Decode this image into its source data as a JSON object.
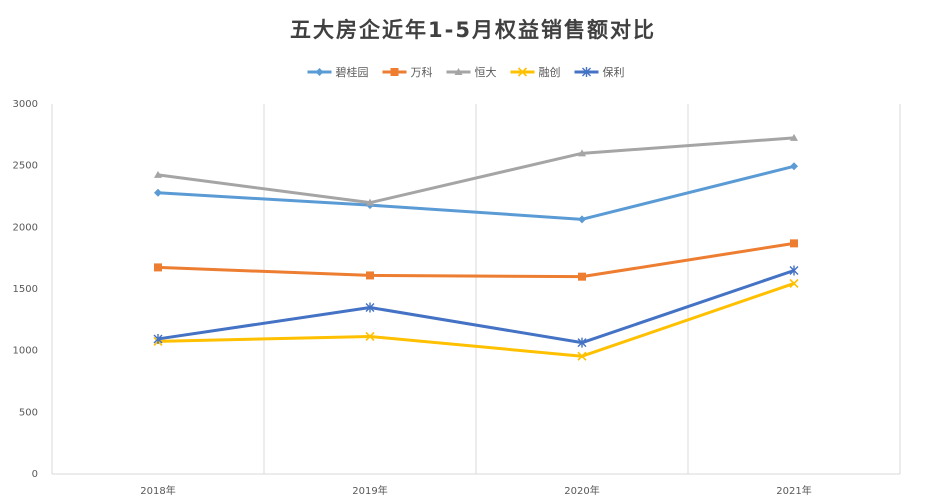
{
  "chart_data": {
    "type": "line",
    "title": "五大房企近年1-5月权益销售额对比",
    "categories": [
      "2018年",
      "2019年",
      "2020年",
      "2021年"
    ],
    "ylim": [
      0,
      3000
    ],
    "yticks": [
      0,
      500,
      1000,
      1500,
      2000,
      2500,
      3000
    ],
    "grid": "vertical",
    "legend_position": "top",
    "series": [
      {
        "name": "碧桂园",
        "values": [
          2280,
          2180,
          2065,
          2495
        ],
        "color": "#5b9bd5",
        "marker": "diamond"
      },
      {
        "name": "万科",
        "values": [
          1675,
          1610,
          1600,
          1870
        ],
        "color": "#ed7d31",
        "marker": "square"
      },
      {
        "name": "恒大",
        "values": [
          2425,
          2200,
          2600,
          2725
        ],
        "color": "#a5a5a5",
        "marker": "triangle"
      },
      {
        "name": "融创",
        "values": [
          1075,
          1115,
          955,
          1545
        ],
        "color": "#ffc000",
        "marker": "x"
      },
      {
        "name": "保利",
        "values": [
          1095,
          1350,
          1065,
          1650
        ],
        "color": "#4472c4",
        "marker": "star"
      }
    ]
  }
}
